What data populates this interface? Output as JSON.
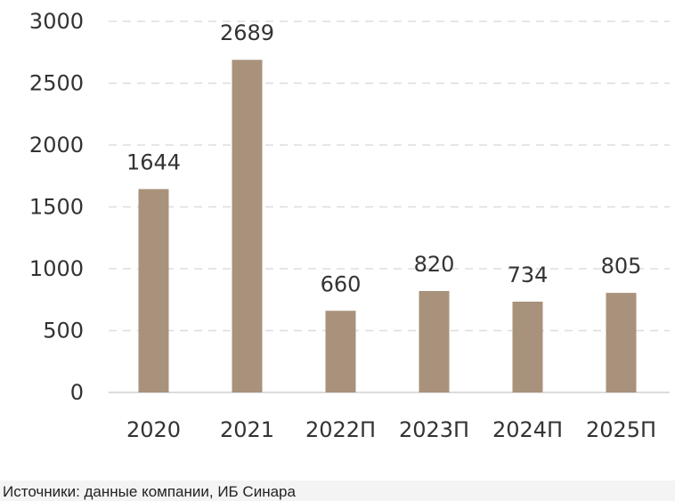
{
  "chart_data": {
    "type": "bar",
    "categories": [
      "2020",
      "2021",
      "2022П",
      "2023П",
      "2024П",
      "2025П"
    ],
    "values": [
      1644,
      2689,
      660,
      820,
      734,
      805
    ],
    "data_labels": [
      "1644",
      "2689",
      "660",
      "820",
      "734",
      "805"
    ],
    "yticks": [
      0,
      500,
      1000,
      1500,
      2000,
      2500,
      3000
    ],
    "ytick_labels": [
      "0",
      "500",
      "1000",
      "1500",
      "2000",
      "2500",
      "3000"
    ],
    "ylim": [
      0,
      3000
    ],
    "grid": true,
    "legend": "none",
    "title": "",
    "xlabel": "",
    "ylabel": "",
    "colors": {
      "bar": "#a8927b",
      "grid": "#dddddd",
      "axis": "#d0d0d0",
      "text": "#333333"
    }
  },
  "footer": {
    "source": "Источники: данные компании, ИБ Синара"
  }
}
